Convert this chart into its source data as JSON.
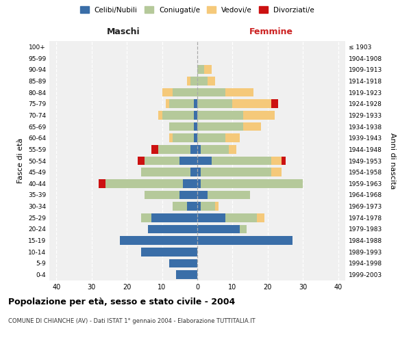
{
  "age_groups": [
    "0-4",
    "5-9",
    "10-14",
    "15-19",
    "20-24",
    "25-29",
    "30-34",
    "35-39",
    "40-44",
    "45-49",
    "50-54",
    "55-59",
    "60-64",
    "65-69",
    "70-74",
    "75-79",
    "80-84",
    "85-89",
    "90-94",
    "95-99",
    "100+"
  ],
  "birth_years": [
    "1999-2003",
    "1994-1998",
    "1989-1993",
    "1984-1988",
    "1979-1983",
    "1974-1978",
    "1969-1973",
    "1964-1968",
    "1959-1963",
    "1954-1958",
    "1949-1953",
    "1944-1948",
    "1939-1943",
    "1934-1938",
    "1929-1933",
    "1924-1928",
    "1919-1923",
    "1914-1918",
    "1909-1913",
    "1904-1908",
    "≤ 1903"
  ],
  "colors": {
    "celibi": "#3a6ea8",
    "coniugati": "#b5c99a",
    "vedovi": "#f5c97a",
    "divorziati": "#cc1111"
  },
  "maschi": {
    "celibi": [
      6,
      8,
      16,
      22,
      14,
      13,
      3,
      5,
      4,
      2,
      5,
      2,
      1,
      1,
      1,
      1,
      0,
      0,
      0,
      0,
      0
    ],
    "coniugati": [
      0,
      0,
      0,
      0,
      0,
      3,
      4,
      10,
      22,
      14,
      10,
      9,
      6,
      7,
      9,
      7,
      7,
      2,
      0,
      0,
      0
    ],
    "vedovi": [
      0,
      0,
      0,
      0,
      0,
      0,
      0,
      0,
      0,
      0,
      0,
      0,
      1,
      0,
      1,
      1,
      3,
      1,
      0,
      0,
      0
    ],
    "divorziati": [
      0,
      0,
      0,
      0,
      0,
      0,
      0,
      0,
      2,
      0,
      2,
      2,
      0,
      0,
      0,
      0,
      0,
      0,
      0,
      0,
      0
    ]
  },
  "femmine": {
    "celibi": [
      0,
      0,
      0,
      27,
      12,
      8,
      1,
      3,
      1,
      1,
      4,
      1,
      0,
      0,
      0,
      0,
      0,
      0,
      0,
      0,
      0
    ],
    "coniugati": [
      0,
      0,
      0,
      0,
      2,
      9,
      4,
      12,
      29,
      20,
      17,
      8,
      8,
      13,
      13,
      10,
      8,
      3,
      2,
      0,
      0
    ],
    "vedovi": [
      0,
      0,
      0,
      0,
      0,
      2,
      1,
      0,
      0,
      3,
      3,
      2,
      4,
      5,
      9,
      11,
      8,
      2,
      2,
      0,
      0
    ],
    "divorziati": [
      0,
      0,
      0,
      0,
      0,
      0,
      0,
      0,
      0,
      0,
      1,
      0,
      0,
      0,
      0,
      2,
      0,
      0,
      0,
      0,
      0
    ]
  },
  "xlim": 42,
  "title": "Popolazione per età, sesso e stato civile - 2004",
  "subtitle": "COMUNE DI CHIANCHE (AV) - Dati ISTAT 1° gennaio 2004 - Elaborazione TUTTITALIA.IT",
  "xlabel_left": "Maschi",
  "xlabel_right": "Femmine",
  "ylabel_left": "Fasce di età",
  "ylabel_right": "Anni di nascita",
  "legend_labels": [
    "Celibi/Nubili",
    "Coniugati/e",
    "Vedovi/e",
    "Divorziati/e"
  ],
  "background_color": "#f0f0f0"
}
